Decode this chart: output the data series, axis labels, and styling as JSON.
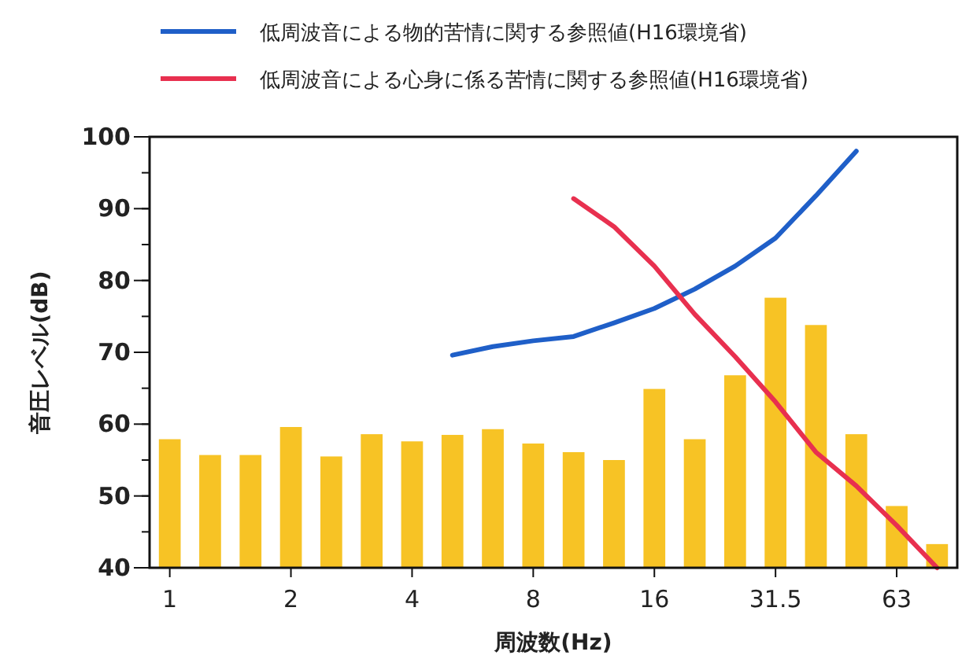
{
  "chart_data": {
    "type": "bar",
    "xlabel": "周波数(Hz)",
    "ylabel": "音圧レベル(dB)",
    "categories": [
      "1",
      null,
      null,
      "2",
      null,
      null,
      "4",
      null,
      null,
      "8",
      null,
      null,
      "16",
      null,
      null,
      "31.5",
      null,
      null,
      "63",
      null
    ],
    "ylim": [
      40,
      100
    ],
    "yticks": [
      40,
      50,
      60,
      70,
      80,
      90,
      100
    ],
    "grid": false,
    "legend": "top",
    "series": [
      {
        "color": "#f7c325",
        "values": [
          57.9,
          55.7,
          55.7,
          59.6,
          55.5,
          58.6,
          57.6,
          58.5,
          59.3,
          57.3,
          56.1,
          55.0,
          64.9,
          57.9,
          66.8,
          77.6,
          73.8,
          58.6,
          48.6,
          43.3
        ]
      },
      {
        "type": "line",
        "name": "低周波音による物的苦情に関する参照値(H16環境省)",
        "color": "#1f5fc8",
        "values": [
          null,
          null,
          null,
          null,
          null,
          null,
          null,
          69.6,
          70.8,
          71.6,
          72.2,
          74.1,
          76.1,
          78.8,
          82.0,
          85.9,
          91.8,
          98.0,
          null,
          null
        ]
      },
      {
        "type": "line",
        "name": "低周波音による心身に係る苦情に関する参照値(H16環境省)",
        "color": "#e8304f",
        "values": [
          null,
          null,
          null,
          null,
          null,
          null,
          null,
          null,
          null,
          null,
          91.4,
          87.5,
          82.0,
          75.3,
          69.4,
          63.1,
          56.1,
          51.4,
          45.9,
          40.0
        ]
      }
    ]
  }
}
